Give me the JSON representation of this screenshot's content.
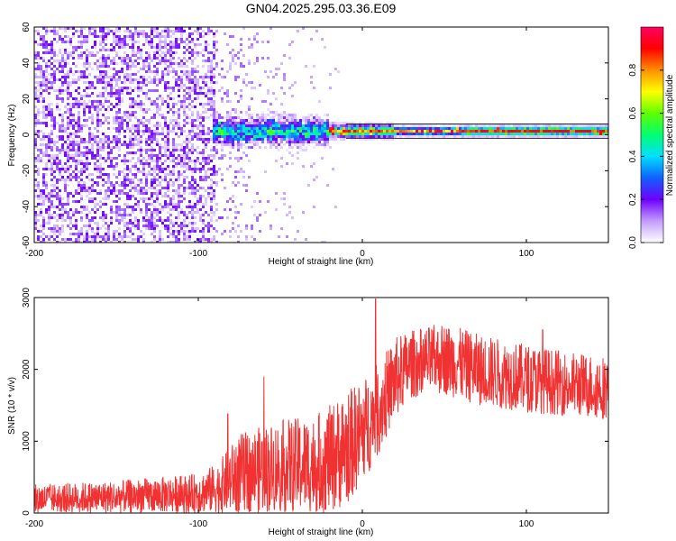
{
  "title": "GN04.2025.295.03.36.E09",
  "chart_data": [
    {
      "type": "heatmap",
      "name": "spectrogram",
      "xlabel": "Height of straight line (km)",
      "ylabel": "Frequency (Hz)",
      "xlim": [
        -200,
        150
      ],
      "ylim": [
        -60,
        60
      ],
      "xticks": [
        -200,
        -100,
        0,
        100
      ],
      "yticks": [
        -60,
        -40,
        -20,
        0,
        20,
        40,
        60
      ],
      "colorbar": {
        "label": "Normalized spectral amplitude",
        "range": [
          0,
          1
        ],
        "ticks": [
          0.0,
          0.2,
          0.4,
          0.6,
          0.8
        ],
        "tick_labels": [
          "0.0",
          "0.2",
          "0.4",
          "0.6",
          "0.8"
        ],
        "colors": [
          "#ffffff",
          "#c39cff",
          "#6e00ff",
          "#1060ff",
          "#00e0ff",
          "#00ff70",
          "#60ff00",
          "#ffff00",
          "#ff9000",
          "#ff0000",
          "#ff0060"
        ]
      },
      "features": [
        {
          "description": "diffuse purple noise",
          "x_range": [
            -200,
            -90
          ],
          "freq_range": [
            -60,
            60
          ],
          "amplitude": 0.15
        },
        {
          "description": "noise fading",
          "x_range": [
            -90,
            -10
          ],
          "freq_range": [
            -60,
            60
          ],
          "amplitude": 0.05
        },
        {
          "description": "spectral line",
          "x_range": [
            -92,
            150
          ],
          "center_hz": 2,
          "amplitude": 0.95
        }
      ]
    },
    {
      "type": "line",
      "name": "snr",
      "xlabel": "Height of straight line (km)",
      "ylabel": "SNR (10 * v/v)",
      "xlim": [
        -200,
        150
      ],
      "ylim": [
        0,
        3000
      ],
      "xticks": [
        -200,
        -100,
        0,
        100
      ],
      "yticks": [
        0,
        1000,
        2000,
        3000
      ],
      "color": "#f03232",
      "envelope": {
        "x": [
          -200,
          -150,
          -100,
          -88,
          -75,
          -50,
          -30,
          -20,
          -10,
          0,
          10,
          20,
          30,
          50,
          70,
          100,
          125,
          150
        ],
        "lower": [
          0,
          0,
          0,
          0,
          0,
          0,
          0,
          0,
          100,
          400,
          800,
          1300,
          1600,
          1650,
          1500,
          1400,
          1350,
          1300
        ],
        "upper": [
          400,
          450,
          550,
          700,
          1100,
          1300,
          1350,
          1500,
          1700,
          1850,
          2100,
          2450,
          2550,
          2650,
          2500,
          2350,
          2250,
          2200
        ]
      },
      "spikes": [
        {
          "x": 8,
          "value": 2980
        },
        {
          "x": -82,
          "value": 1380
        },
        {
          "x": -60,
          "value": 1900
        },
        {
          "x": 110,
          "value": 2550
        }
      ]
    }
  ]
}
